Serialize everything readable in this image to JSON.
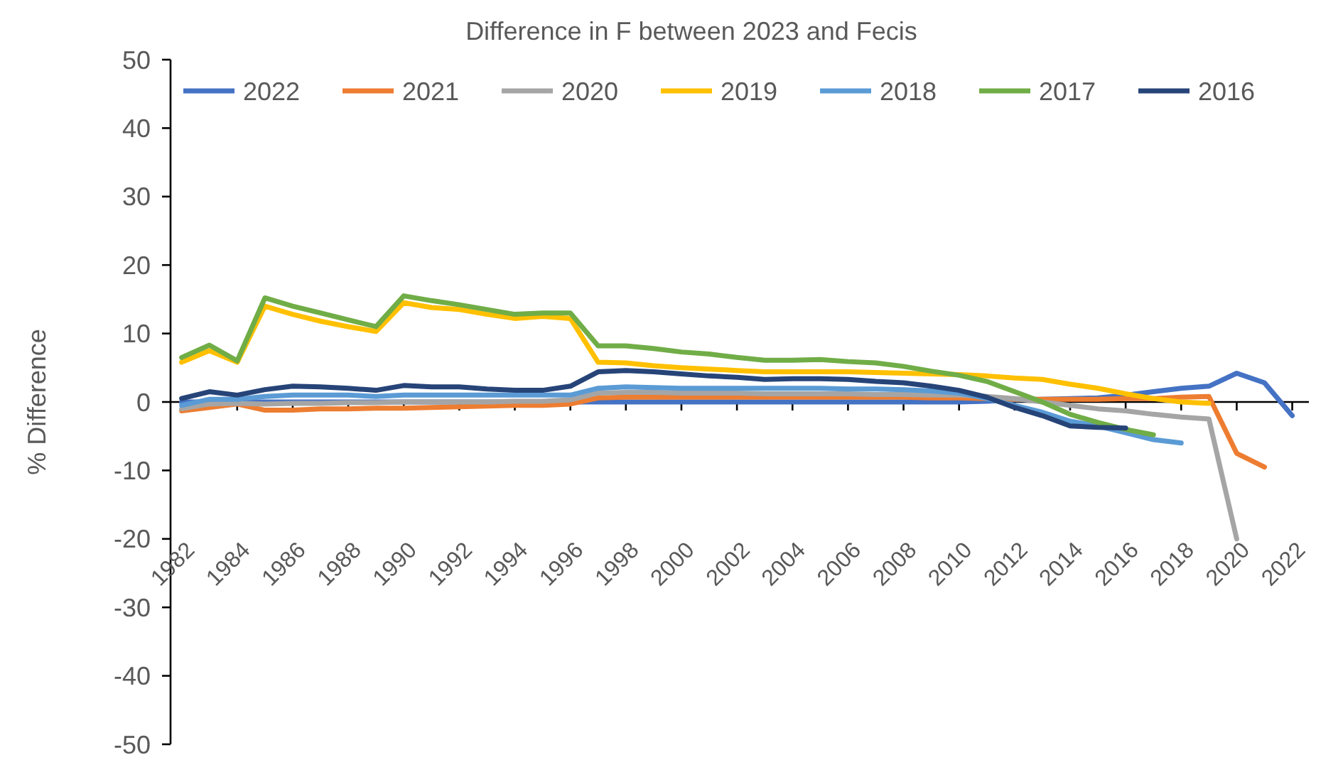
{
  "chart_data": {
    "type": "line",
    "title": "Difference in F between 2023 and Fecis",
    "ylabel": "% Difference",
    "x": [
      1982,
      1983,
      1984,
      1985,
      1986,
      1987,
      1988,
      1989,
      1990,
      1991,
      1992,
      1993,
      1994,
      1995,
      1996,
      1997,
      1998,
      1999,
      2000,
      2001,
      2002,
      2003,
      2004,
      2005,
      2006,
      2007,
      2008,
      2009,
      2010,
      2011,
      2012,
      2013,
      2014,
      2015,
      2016,
      2017,
      2018,
      2019,
      2020,
      2021,
      2022
    ],
    "xlim": [
      1981.6,
      2022.6
    ],
    "xticks": [
      1982,
      1984,
      1986,
      1988,
      1990,
      1992,
      1994,
      1996,
      1998,
      2000,
      2002,
      2004,
      2006,
      2008,
      2010,
      2012,
      2014,
      2016,
      2018,
      2020,
      2022
    ],
    "ylim": [
      -50,
      50
    ],
    "yticks": [
      -50,
      -40,
      -30,
      -20,
      -10,
      0,
      10,
      20,
      30,
      40,
      50
    ],
    "legend": "top right",
    "series": [
      {
        "name": "2022",
        "color": "#4472c4",
        "values": [
          0,
          0,
          0,
          0,
          0,
          0,
          0,
          0,
          0,
          0,
          0,
          0,
          0,
          0,
          0,
          0,
          0,
          0,
          0,
          0,
          0,
          0,
          0,
          0,
          0,
          0,
          0,
          0,
          0,
          0.1,
          0.3,
          0.4,
          0.5,
          0.6,
          1,
          1.5,
          2,
          2.3,
          4.2,
          2.8,
          -2
        ]
      },
      {
        "name": "2021",
        "color": "#ed7d31",
        "values": [
          -1.3,
          -0.8,
          -0.3,
          -1.2,
          -1.2,
          -1,
          -1,
          -0.9,
          -0.9,
          -0.8,
          -0.7,
          -0.6,
          -0.5,
          -0.5,
          -0.3,
          0.6,
          0.7,
          0.7,
          0.7,
          0.7,
          0.7,
          0.7,
          0.7,
          0.7,
          0.7,
          0.7,
          0.7,
          0.6,
          0.6,
          0.5,
          0.4,
          0.4,
          0.4,
          0.4,
          0.5,
          0.5,
          0.7,
          0.8,
          -7.5,
          -9.5,
          null
        ]
      },
      {
        "name": "2020",
        "color": "#a5a5a5",
        "values": [
          -1,
          -0.3,
          -0.2,
          -0.3,
          -0.2,
          -0.2,
          -0.1,
          -0.1,
          0,
          0,
          0,
          0,
          0.1,
          0.1,
          0.3,
          1.3,
          1.4,
          1.4,
          1.3,
          1.3,
          1.3,
          1.2,
          1.2,
          1.2,
          1.2,
          1.1,
          1.1,
          1,
          1,
          0.8,
          0.5,
          0,
          -0.5,
          -1,
          -1.3,
          -1.8,
          -2.2,
          -2.5,
          -20,
          null,
          null
        ]
      },
      {
        "name": "2019",
        "color": "#ffc000",
        "values": [
          5.8,
          7.5,
          5.8,
          14,
          12.8,
          11.8,
          11,
          10.3,
          14.5,
          13.8,
          13.5,
          12.8,
          12.2,
          12.5,
          12.2,
          5.8,
          5.7,
          5.3,
          5,
          4.8,
          4.6,
          4.4,
          4.4,
          4.4,
          4.4,
          4.3,
          4.2,
          4.1,
          4,
          3.8,
          3.5,
          3.3,
          2.6,
          2,
          1.2,
          0.5,
          0,
          -0.2,
          null,
          null,
          null
        ]
      },
      {
        "name": "2018",
        "color": "#5b9bd5",
        "values": [
          -0.5,
          0.4,
          0.4,
          0.8,
          1,
          1,
          1,
          0.8,
          1,
          1,
          1,
          1,
          1,
          1,
          1,
          2,
          2.2,
          2.1,
          2,
          2,
          2,
          2,
          2,
          2,
          1.9,
          1.9,
          1.8,
          1.6,
          1.3,
          0.5,
          -0.5,
          -1.5,
          -2.8,
          -3.5,
          -4.5,
          -5.5,
          -6,
          null,
          null,
          null,
          null
        ]
      },
      {
        "name": "2017",
        "color": "#70ad47",
        "values": [
          6.5,
          8.3,
          6,
          15.2,
          14,
          13,
          12,
          11,
          15.5,
          14.8,
          14.2,
          13.5,
          12.8,
          13,
          13,
          8.2,
          8.2,
          7.8,
          7.3,
          7,
          6.5,
          6.1,
          6.1,
          6.2,
          5.9,
          5.7,
          5.2,
          4.5,
          3.9,
          3,
          1.5,
          0,
          -1.8,
          -3,
          -4,
          -4.8,
          null,
          null,
          null,
          null,
          null
        ]
      },
      {
        "name": "2016",
        "color": "#264478",
        "values": [
          0.5,
          1.5,
          1,
          1.8,
          2.3,
          2.2,
          2,
          1.7,
          2.4,
          2.2,
          2.2,
          1.9,
          1.7,
          1.7,
          2.3,
          4.4,
          4.6,
          4.4,
          4.1,
          3.8,
          3.6,
          3.3,
          3.4,
          3.4,
          3.3,
          3,
          2.8,
          2.3,
          1.7,
          0.7,
          -0.8,
          -2,
          -3.5,
          -3.7,
          -3.8,
          null,
          null,
          null,
          null,
          null,
          null
        ]
      }
    ]
  }
}
